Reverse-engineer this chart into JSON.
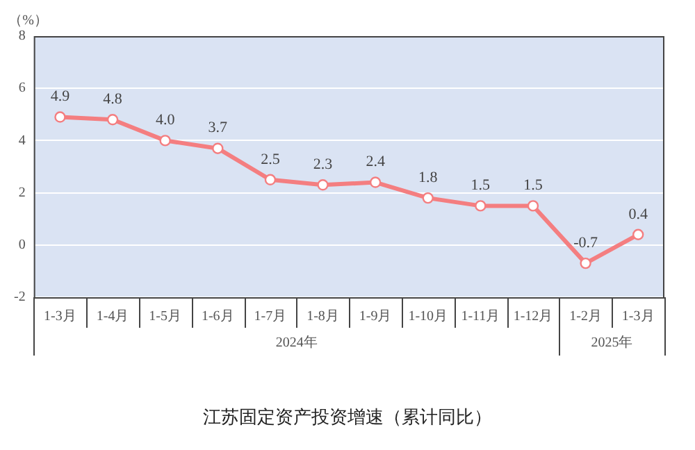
{
  "chart_data": {
    "type": "line",
    "title": "江苏固定资产投资增速（累计同比）",
    "ylabel": "（%）",
    "categories": [
      "1-3月",
      "1-4月",
      "1-5月",
      "1-6月",
      "1-7月",
      "1-8月",
      "1-9月",
      "1-10月",
      "1-11月",
      "1-12月",
      "1-2月",
      "1-3月"
    ],
    "series": [
      {
        "color": "#f47e80",
        "values": [
          4.9,
          4.8,
          4.0,
          3.7,
          2.5,
          2.3,
          2.4,
          1.8,
          1.5,
          1.5,
          -0.7,
          0.4
        ],
        "value_labels": [
          "4.9",
          "4.8",
          "4.0",
          "3.7",
          "2.5",
          "2.3",
          "2.4",
          "1.8",
          "1.5",
          "1.5",
          "-0.7",
          "0.4"
        ]
      }
    ],
    "ylim": [
      -2,
      8
    ],
    "yticks": [
      -2,
      0,
      2,
      4,
      6,
      8
    ],
    "grid": "y",
    "legend": false,
    "marker": "circle",
    "line_style": "solid",
    "annotations": [
      "2024年",
      "2025年"
    ]
  }
}
